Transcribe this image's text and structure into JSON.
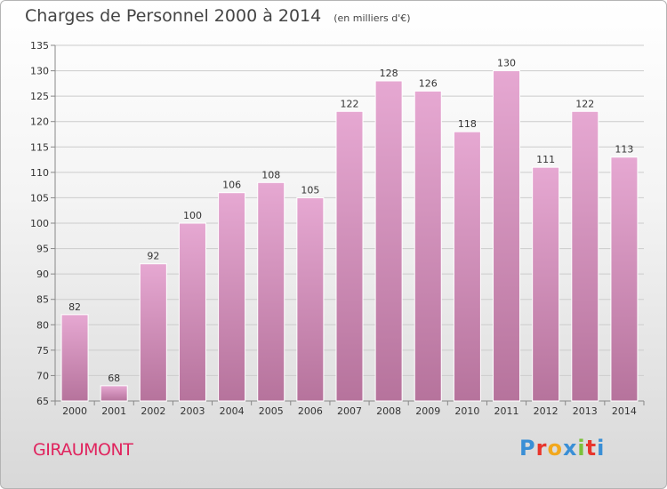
{
  "title": "Charges de Personnel 2000 à 2014",
  "subtitle": "(en milliers d'€)",
  "place": "GIRAUMONT",
  "logo": {
    "text": "Proxiti",
    "colors": [
      "#3a8fd6",
      "#e8352c",
      "#f2a81d",
      "#3a8fd6",
      "#7cc13a",
      "#e8352c",
      "#3a8fd6"
    ]
  },
  "colors": {
    "bar_top": "#e6a8d2",
    "bar_bottom": "#b6739c",
    "grid": "#cccccc",
    "axis": "#888888"
  },
  "chart_data": {
    "type": "bar",
    "categories": [
      "2000",
      "2001",
      "2002",
      "2003",
      "2004",
      "2005",
      "2006",
      "2007",
      "2008",
      "2009",
      "2010",
      "2011",
      "2012",
      "2013",
      "2014"
    ],
    "values": [
      82,
      68,
      92,
      100,
      106,
      108,
      105,
      122,
      128,
      126,
      118,
      130,
      111,
      122,
      113
    ],
    "ylim": [
      65,
      135
    ],
    "yticks": [
      65,
      70,
      75,
      80,
      85,
      90,
      95,
      100,
      105,
      110,
      115,
      120,
      125,
      130,
      135
    ],
    "grid": true,
    "title": "Charges de Personnel 2000 à 2014",
    "subtitle": "(en milliers d'€)",
    "xlabel": "",
    "ylabel": ""
  }
}
